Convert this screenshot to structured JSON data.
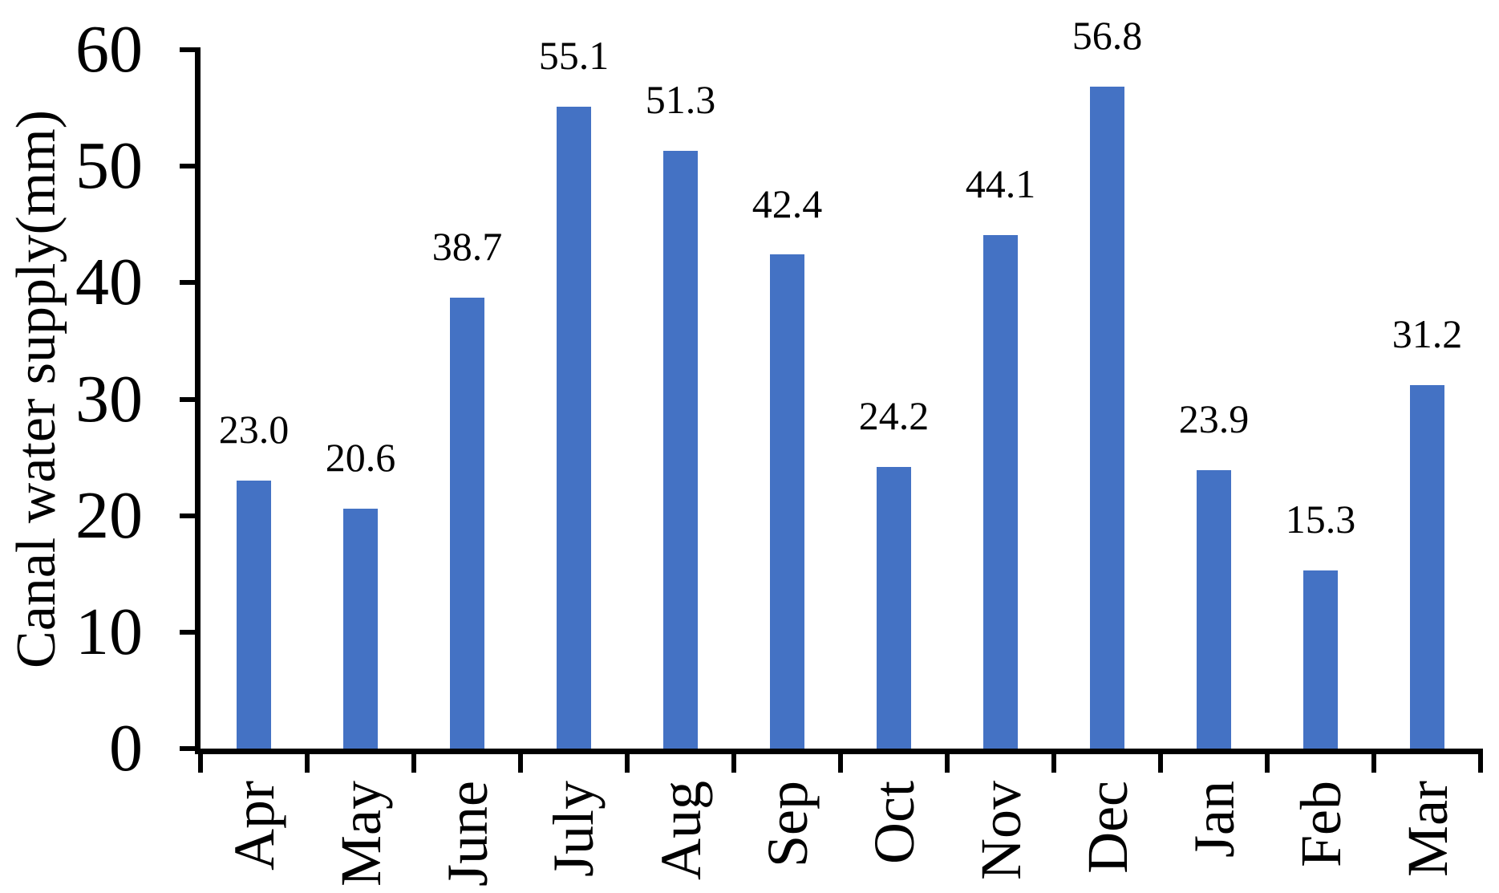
{
  "chart_data": {
    "type": "bar",
    "title": "",
    "xlabel": "",
    "ylabel": "Canal water supply(mm)",
    "categories": [
      "Apr",
      "May",
      "June",
      "July",
      "Aug",
      "Sep",
      "Oct",
      "Nov",
      "Dec",
      "Jan",
      "Feb",
      "Mar"
    ],
    "values": [
      23.0,
      20.6,
      38.7,
      55.1,
      51.3,
      42.4,
      24.2,
      44.1,
      56.8,
      23.9,
      15.3,
      31.2
    ],
    "value_labels": [
      "23.0",
      "20.6",
      "38.7",
      "55.1",
      "51.3",
      "42.4",
      "24.2",
      "44.1",
      "56.8",
      "23.9",
      "15.3",
      "31.2"
    ],
    "ylim": [
      0,
      60
    ],
    "yticks": [
      0,
      10,
      20,
      30,
      40,
      50,
      60
    ],
    "grid": false,
    "legend_position": "none",
    "bar_color": "#4472C4",
    "axis_color": "#000000",
    "text_color": "#000000"
  }
}
